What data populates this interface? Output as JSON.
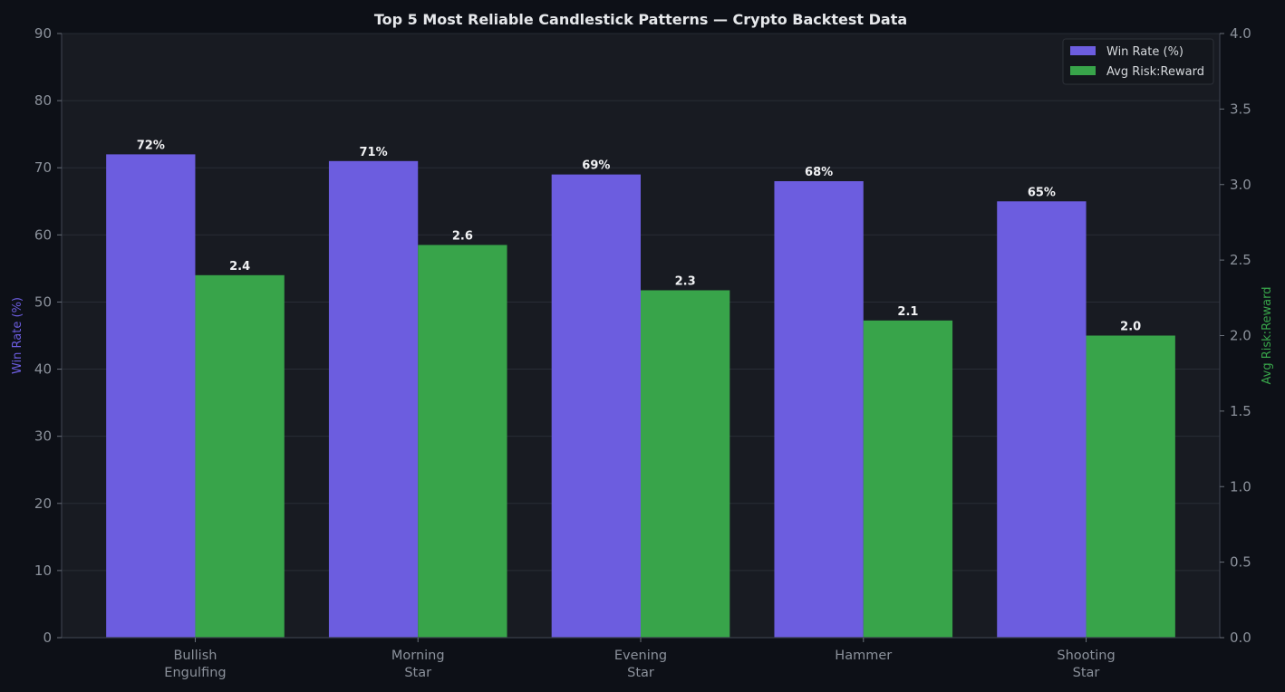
{
  "chart_data": {
    "type": "bar",
    "title": "Top 5 Most Reliable Candlestick Patterns — Crypto Backtest Data",
    "categories": [
      "Bullish\nEngulfing",
      "Morning\nStar",
      "Evening\nStar",
      "Hammer",
      "Shooting\nStar"
    ],
    "series": [
      {
        "name": "Win Rate (%)",
        "axis": "left",
        "color": "#6c5ddf",
        "values": [
          72,
          71,
          69,
          68,
          65
        ],
        "labels": [
          "72%",
          "71%",
          "69%",
          "68%",
          "65%"
        ]
      },
      {
        "name": "Avg Risk:Reward",
        "axis": "right",
        "color": "#38a44a",
        "values": [
          2.4,
          2.6,
          2.3,
          2.1,
          2.0
        ],
        "labels": [
          "2.4",
          "2.6",
          "2.3",
          "2.1",
          "2.0"
        ]
      }
    ],
    "y_left": {
      "label": "Win Rate (%)",
      "color": "#6c5ddf",
      "lim": [
        0,
        90
      ],
      "ticks": [
        "0",
        "10",
        "20",
        "30",
        "40",
        "50",
        "60",
        "70",
        "80",
        "90"
      ]
    },
    "y_right": {
      "label": "Avg Risk:Reward",
      "color": "#38a44a",
      "lim": [
        0,
        4.0
      ],
      "ticks": [
        "0.0",
        "0.5",
        "1.0",
        "1.5",
        "2.0",
        "2.5",
        "3.0",
        "3.5",
        "4.0"
      ]
    },
    "grid": true,
    "legend": "top-right"
  }
}
